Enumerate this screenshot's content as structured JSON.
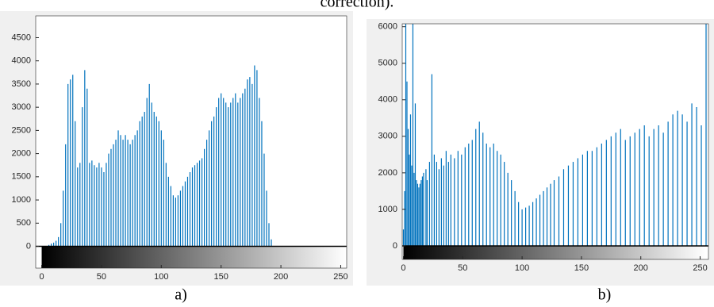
{
  "header_text": "correction).",
  "chart_data": [
    {
      "type": "stem",
      "caption": "a)",
      "color": "#0072bd",
      "x": [
        6,
        8,
        10,
        12,
        14,
        16,
        18,
        20,
        22,
        24,
        26,
        28,
        30,
        32,
        34,
        36,
        38,
        40,
        42,
        44,
        46,
        48,
        50,
        52,
        54,
        56,
        58,
        60,
        62,
        64,
        66,
        68,
        70,
        72,
        74,
        76,
        78,
        80,
        82,
        84,
        86,
        88,
        90,
        92,
        94,
        96,
        98,
        100,
        102,
        104,
        106,
        108,
        110,
        112,
        114,
        116,
        118,
        120,
        122,
        124,
        126,
        128,
        130,
        132,
        134,
        136,
        138,
        140,
        142,
        144,
        146,
        148,
        150,
        152,
        154,
        156,
        158,
        160,
        162,
        164,
        166,
        168,
        170,
        172,
        174,
        176,
        178,
        180,
        182,
        184,
        186,
        188,
        190,
        192
      ],
      "values": [
        30,
        60,
        80,
        120,
        200,
        500,
        1200,
        2200,
        3500,
        3600,
        3700,
        2700,
        1700,
        1800,
        3000,
        3800,
        3400,
        1800,
        1850,
        1750,
        1700,
        1800,
        1700,
        1600,
        1800,
        2000,
        2100,
        2200,
        2300,
        2500,
        2400,
        2300,
        2400,
        2300,
        2200,
        2300,
        2400,
        2500,
        2700,
        2800,
        2900,
        3200,
        3500,
        3100,
        2900,
        2800,
        2700,
        2500,
        2300,
        1800,
        1500,
        1300,
        1100,
        1050,
        1100,
        1200,
        1300,
        1400,
        1500,
        1600,
        1700,
        1750,
        1800,
        1850,
        1900,
        2100,
        2300,
        2500,
        2700,
        2800,
        3000,
        3200,
        3300,
        3200,
        3100,
        3000,
        3100,
        3200,
        3300,
        3100,
        3200,
        3300,
        3400,
        3600,
        3650,
        3500,
        3900,
        3800,
        3200,
        2700,
        2000,
        1200,
        500,
        150
      ],
      "xlim": [
        -5,
        255
      ],
      "xticks": [
        0,
        50,
        100,
        150,
        200,
        250
      ],
      "ylim": [
        -470,
        4970
      ],
      "yticks": [
        0,
        500,
        1000,
        1500,
        2000,
        2500,
        3000,
        3500,
        4000,
        4500
      ]
    },
    {
      "type": "stem",
      "caption": "b)",
      "color": "#0072bd",
      "x": [
        0,
        1,
        2,
        3,
        4,
        5,
        6,
        7,
        8,
        9,
        10,
        11,
        12,
        13,
        14,
        15,
        16,
        17,
        19,
        20,
        22,
        24,
        26,
        28,
        30,
        32,
        34,
        36,
        38,
        40,
        43,
        46,
        49,
        52,
        55,
        58,
        61,
        64,
        67,
        70,
        73,
        76,
        79,
        82,
        85,
        88,
        91,
        94,
        97,
        100,
        103,
        106,
        109,
        112,
        115,
        118,
        121,
        124,
        127,
        131,
        135,
        139,
        143,
        147,
        151,
        155,
        159,
        163,
        167,
        171,
        175,
        179,
        183,
        187,
        191,
        195,
        199,
        203,
        207,
        211,
        215,
        219,
        223,
        227,
        231,
        235,
        239,
        243,
        247,
        251,
        255
      ],
      "values": [
        450,
        1500,
        6100,
        4500,
        3200,
        2500,
        3600,
        2200,
        6100,
        2000,
        3900,
        1800,
        1700,
        1600,
        1700,
        1800,
        1900,
        2000,
        2100,
        1800,
        2300,
        4700,
        2500,
        2300,
        2100,
        2400,
        2200,
        2600,
        2300,
        2500,
        2400,
        2600,
        2500,
        2700,
        2800,
        2900,
        3200,
        3400,
        3100,
        2800,
        2700,
        2800,
        2600,
        2500,
        2300,
        2000,
        1800,
        1500,
        1200,
        1000,
        1050,
        1100,
        1200,
        1300,
        1400,
        1500,
        1600,
        1700,
        1800,
        1900,
        2100,
        2200,
        2300,
        2400,
        2500,
        2600,
        2600,
        2700,
        2800,
        2900,
        3000,
        3100,
        3200,
        2900,
        3000,
        3100,
        3200,
        3300,
        3000,
        3200,
        3300,
        3100,
        3400,
        3600,
        3700,
        3600,
        3400,
        3900,
        3800,
        3300,
        6100
      ],
      "xlim": [
        -1,
        257
      ],
      "xticks": [
        0,
        50,
        100,
        150,
        200,
        250
      ],
      "ylim": [
        -370,
        6080
      ],
      "yticks": [
        0,
        1000,
        2000,
        3000,
        4000,
        5000,
        6000
      ]
    }
  ]
}
